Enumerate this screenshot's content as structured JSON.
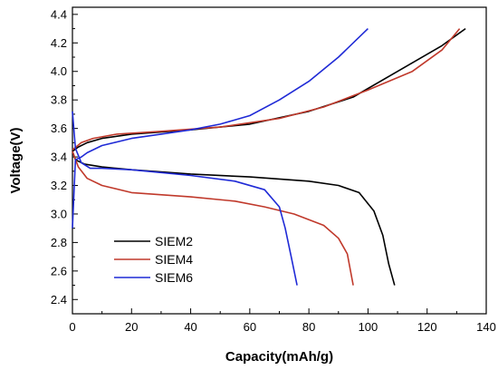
{
  "chart_data": {
    "type": "line",
    "title": "",
    "xlabel": "Capacity(mAh/g)",
    "ylabel": "Voltage(V)",
    "xlim": [
      0,
      140
    ],
    "ylim": [
      2.3,
      4.45
    ],
    "xticks": [
      0,
      20,
      40,
      60,
      80,
      100,
      120,
      140
    ],
    "xtick_labels": [
      "0",
      "20",
      "40",
      "60",
      "80",
      "100",
      "120",
      "140"
    ],
    "yticks": [
      2.4,
      2.6,
      2.8,
      3.0,
      3.2,
      3.4,
      3.6,
      3.8,
      4.0,
      4.2,
      4.4
    ],
    "ytick_labels": [
      "2.4",
      "2.6",
      "2.8",
      "3.0",
      "3.2",
      "3.4",
      "3.6",
      "3.8",
      "4.0",
      "4.2",
      "4.4"
    ],
    "grid": false,
    "legend_position": "bottom-left",
    "series": [
      {
        "name": "SIEM2",
        "color": "#000000",
        "charge": [
          [
            0,
            3.44
          ],
          [
            2,
            3.47
          ],
          [
            5,
            3.5
          ],
          [
            10,
            3.53
          ],
          [
            20,
            3.56
          ],
          [
            40,
            3.59
          ],
          [
            60,
            3.63
          ],
          [
            80,
            3.72
          ],
          [
            95,
            3.82
          ],
          [
            110,
            4.0
          ],
          [
            125,
            4.18
          ],
          [
            133,
            4.3
          ]
        ],
        "discharge": [
          [
            0,
            3.44
          ],
          [
            1,
            3.38
          ],
          [
            4,
            3.35
          ],
          [
            10,
            3.33
          ],
          [
            20,
            3.31
          ],
          [
            40,
            3.28
          ],
          [
            60,
            3.26
          ],
          [
            80,
            3.23
          ],
          [
            90,
            3.2
          ],
          [
            97,
            3.15
          ],
          [
            102,
            3.02
          ],
          [
            105,
            2.85
          ],
          [
            107,
            2.65
          ],
          [
            109,
            2.5
          ]
        ]
      },
      {
        "name": "SIEM4",
        "color": "#c0392b",
        "charge": [
          [
            0,
            3.45
          ],
          [
            3,
            3.5
          ],
          [
            7,
            3.53
          ],
          [
            15,
            3.56
          ],
          [
            30,
            3.58
          ],
          [
            50,
            3.61
          ],
          [
            70,
            3.67
          ],
          [
            85,
            3.75
          ],
          [
            100,
            3.87
          ],
          [
            115,
            4.0
          ],
          [
            125,
            4.15
          ],
          [
            131,
            4.3
          ]
        ],
        "discharge": [
          [
            0,
            3.44
          ],
          [
            2,
            3.33
          ],
          [
            5,
            3.25
          ],
          [
            10,
            3.2
          ],
          [
            20,
            3.15
          ],
          [
            40,
            3.12
          ],
          [
            55,
            3.09
          ],
          [
            65,
            3.05
          ],
          [
            75,
            3.0
          ],
          [
            85,
            2.92
          ],
          [
            90,
            2.83
          ],
          [
            93,
            2.72
          ],
          [
            95,
            2.5
          ]
        ]
      },
      {
        "name": "SIEM6",
        "color": "#1f2ad6",
        "charge": [
          [
            0,
            2.9
          ],
          [
            1,
            3.38
          ],
          [
            3,
            3.4
          ],
          [
            5,
            3.43
          ],
          [
            10,
            3.48
          ],
          [
            20,
            3.53
          ],
          [
            30,
            3.56
          ],
          [
            40,
            3.59
          ],
          [
            50,
            3.63
          ],
          [
            60,
            3.69
          ],
          [
            70,
            3.8
          ],
          [
            80,
            3.93
          ],
          [
            90,
            4.1
          ],
          [
            100,
            4.3
          ]
        ],
        "discharge": [
          [
            0,
            3.72
          ],
          [
            1,
            3.46
          ],
          [
            3,
            3.36
          ],
          [
            6,
            3.32
          ],
          [
            10,
            3.32
          ],
          [
            20,
            3.31
          ],
          [
            40,
            3.27
          ],
          [
            55,
            3.23
          ],
          [
            65,
            3.17
          ],
          [
            70,
            3.05
          ],
          [
            72,
            2.9
          ],
          [
            74,
            2.7
          ],
          [
            76,
            2.5
          ]
        ]
      }
    ]
  }
}
